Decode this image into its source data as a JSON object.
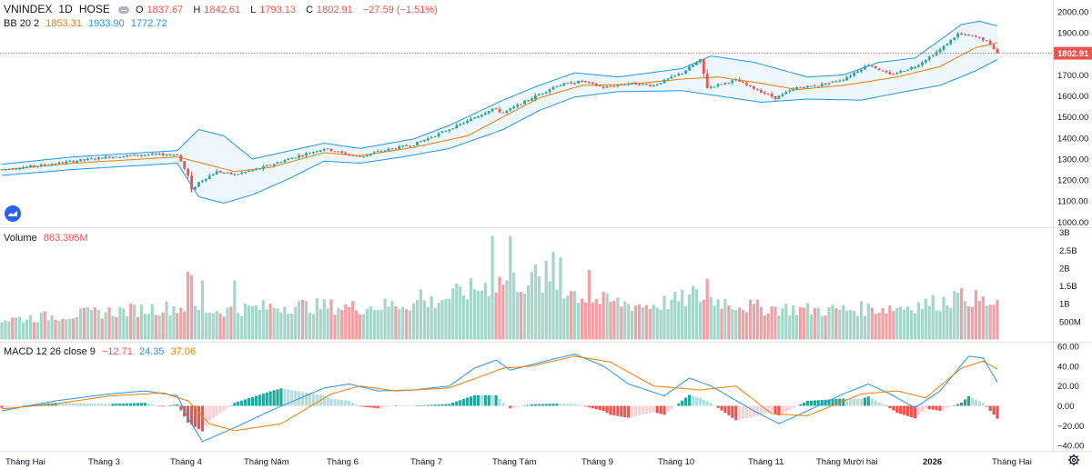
{
  "header": {
    "symbol": "VNINDEX",
    "interval": "1D",
    "exchange": "HOSE",
    "ohlc": {
      "open_label": "O",
      "open": "1837.67",
      "high_label": "H",
      "high": "1842.61",
      "low_label": "L",
      "low": "1793.13",
      "close_label": "C",
      "close": "1802.91",
      "change": "−27.59 (−1.51%)"
    }
  },
  "indicators": {
    "bb": {
      "label": "BB 20 2",
      "basis": "1853.31",
      "upper": "1933.90",
      "lower": "1772.72"
    },
    "volume": {
      "label": "Volume",
      "value": "863.395M"
    },
    "macd": {
      "label": "MACD 12 26 close 9",
      "hist": "−12.71",
      "macd": "24.35",
      "signal": "37.06"
    }
  },
  "colors": {
    "up": "#26a69a",
    "down": "#ef5350",
    "vol_up": "#a5d6c9",
    "vol_down": "#f1a0a6",
    "bb_band": "#2196f3",
    "bb_basis": "#f57c00",
    "macd_line": "#2196f3",
    "signal_line": "#f57c00",
    "last_price_bg": "#ef5350"
  },
  "last_price_tag": "1802.91",
  "chart_data": [
    {
      "type": "candlestick",
      "name": "price",
      "ylim": [
        1000,
        2000
      ],
      "yticks": [
        "2000.00",
        "1900.00",
        "1800.00",
        "1700.00",
        "1600.00",
        "1500.00",
        "1400.00",
        "1300.00",
        "1200.00",
        "1100.00",
        "1000.00"
      ],
      "anchors": [
        {
          "t": 0,
          "v": 1250
        },
        {
          "t": 10,
          "v": 1268
        },
        {
          "t": 20,
          "v": 1290
        },
        {
          "t": 30,
          "v": 1310
        },
        {
          "t": 40,
          "v": 1320
        },
        {
          "t": 49,
          "v": 1322
        },
        {
          "t": 52,
          "v": 1220
        },
        {
          "t": 53,
          "v": 1150
        },
        {
          "t": 55,
          "v": 1190
        },
        {
          "t": 60,
          "v": 1240
        },
        {
          "t": 65,
          "v": 1225
        },
        {
          "t": 72,
          "v": 1255
        },
        {
          "t": 80,
          "v": 1300
        },
        {
          "t": 90,
          "v": 1350
        },
        {
          "t": 97,
          "v": 1320
        },
        {
          "t": 100,
          "v": 1310
        },
        {
          "t": 105,
          "v": 1335
        },
        {
          "t": 115,
          "v": 1370
        },
        {
          "t": 122,
          "v": 1420
        },
        {
          "t": 130,
          "v": 1480
        },
        {
          "t": 137,
          "v": 1540
        },
        {
          "t": 140,
          "v": 1520
        },
        {
          "t": 148,
          "v": 1590
        },
        {
          "t": 155,
          "v": 1650
        },
        {
          "t": 162,
          "v": 1670
        },
        {
          "t": 168,
          "v": 1640
        },
        {
          "t": 175,
          "v": 1660
        },
        {
          "t": 182,
          "v": 1650
        },
        {
          "t": 190,
          "v": 1710
        },
        {
          "t": 195,
          "v": 1770
        },
        {
          "t": 197,
          "v": 1640
        },
        {
          "t": 205,
          "v": 1675
        },
        {
          "t": 212,
          "v": 1620
        },
        {
          "t": 216,
          "v": 1590
        },
        {
          "t": 222,
          "v": 1640
        },
        {
          "t": 228,
          "v": 1650
        },
        {
          "t": 235,
          "v": 1680
        },
        {
          "t": 242,
          "v": 1750
        },
        {
          "t": 248,
          "v": 1700
        },
        {
          "t": 255,
          "v": 1740
        },
        {
          "t": 262,
          "v": 1820
        },
        {
          "t": 267,
          "v": 1895
        },
        {
          "t": 272,
          "v": 1880
        },
        {
          "t": 275,
          "v": 1860
        },
        {
          "t": 277,
          "v": 1825
        },
        {
          "t": 278,
          "v": 1803
        }
      ],
      "bb_upper_anchors": [
        {
          "t": 0,
          "v": 1275
        },
        {
          "t": 20,
          "v": 1310
        },
        {
          "t": 49,
          "v": 1340
        },
        {
          "t": 55,
          "v": 1440
        },
        {
          "t": 62,
          "v": 1410
        },
        {
          "t": 70,
          "v": 1300
        },
        {
          "t": 90,
          "v": 1375
        },
        {
          "t": 100,
          "v": 1350
        },
        {
          "t": 115,
          "v": 1395
        },
        {
          "t": 125,
          "v": 1460
        },
        {
          "t": 140,
          "v": 1580
        },
        {
          "t": 150,
          "v": 1650
        },
        {
          "t": 160,
          "v": 1710
        },
        {
          "t": 172,
          "v": 1690
        },
        {
          "t": 190,
          "v": 1730
        },
        {
          "t": 198,
          "v": 1790
        },
        {
          "t": 210,
          "v": 1760
        },
        {
          "t": 225,
          "v": 1690
        },
        {
          "t": 235,
          "v": 1700
        },
        {
          "t": 245,
          "v": 1760
        },
        {
          "t": 255,
          "v": 1780
        },
        {
          "t": 268,
          "v": 1940
        },
        {
          "t": 273,
          "v": 1955
        },
        {
          "t": 278,
          "v": 1933
        }
      ],
      "bb_lower_anchors": [
        {
          "t": 0,
          "v": 1222
        },
        {
          "t": 20,
          "v": 1250
        },
        {
          "t": 49,
          "v": 1280
        },
        {
          "t": 55,
          "v": 1120
        },
        {
          "t": 62,
          "v": 1090
        },
        {
          "t": 70,
          "v": 1130
        },
        {
          "t": 80,
          "v": 1205
        },
        {
          "t": 90,
          "v": 1290
        },
        {
          "t": 100,
          "v": 1280
        },
        {
          "t": 112,
          "v": 1310
        },
        {
          "t": 125,
          "v": 1350
        },
        {
          "t": 140,
          "v": 1440
        },
        {
          "t": 150,
          "v": 1530
        },
        {
          "t": 160,
          "v": 1595
        },
        {
          "t": 172,
          "v": 1620
        },
        {
          "t": 190,
          "v": 1625
        },
        {
          "t": 200,
          "v": 1600
        },
        {
          "t": 212,
          "v": 1570
        },
        {
          "t": 225,
          "v": 1585
        },
        {
          "t": 240,
          "v": 1580
        },
        {
          "t": 252,
          "v": 1620
        },
        {
          "t": 262,
          "v": 1650
        },
        {
          "t": 272,
          "v": 1720
        },
        {
          "t": 278,
          "v": 1773
        }
      ],
      "bb_basis_anchors": [
        {
          "t": 0,
          "v": 1248
        },
        {
          "t": 20,
          "v": 1280
        },
        {
          "t": 49,
          "v": 1310
        },
        {
          "t": 56,
          "v": 1280
        },
        {
          "t": 65,
          "v": 1240
        },
        {
          "t": 75,
          "v": 1260
        },
        {
          "t": 90,
          "v": 1330
        },
        {
          "t": 100,
          "v": 1315
        },
        {
          "t": 115,
          "v": 1355
        },
        {
          "t": 130,
          "v": 1410
        },
        {
          "t": 140,
          "v": 1500
        },
        {
          "t": 150,
          "v": 1590
        },
        {
          "t": 162,
          "v": 1650
        },
        {
          "t": 175,
          "v": 1655
        },
        {
          "t": 190,
          "v": 1680
        },
        {
          "t": 200,
          "v": 1690
        },
        {
          "t": 212,
          "v": 1660
        },
        {
          "t": 222,
          "v": 1630
        },
        {
          "t": 235,
          "v": 1650
        },
        {
          "t": 250,
          "v": 1690
        },
        {
          "t": 262,
          "v": 1740
        },
        {
          "t": 272,
          "v": 1830
        },
        {
          "t": 278,
          "v": 1853
        }
      ]
    },
    {
      "type": "bar",
      "name": "volume",
      "ylim": [
        0,
        3000
      ],
      "yticks": [
        "3B",
        "2.5B",
        "2B",
        "1.5B",
        "1B",
        "500M"
      ],
      "baseline_anchors": [
        {
          "t": 0,
          "v": 550
        },
        {
          "t": 20,
          "v": 700
        },
        {
          "t": 40,
          "v": 850
        },
        {
          "t": 49,
          "v": 900
        },
        {
          "t": 60,
          "v": 800
        },
        {
          "t": 80,
          "v": 950
        },
        {
          "t": 100,
          "v": 900
        },
        {
          "t": 120,
          "v": 1050
        },
        {
          "t": 130,
          "v": 1350
        },
        {
          "t": 140,
          "v": 1650
        },
        {
          "t": 155,
          "v": 1500
        },
        {
          "t": 165,
          "v": 1100
        },
        {
          "t": 180,
          "v": 950
        },
        {
          "t": 195,
          "v": 1200
        },
        {
          "t": 210,
          "v": 900
        },
        {
          "t": 230,
          "v": 820
        },
        {
          "t": 250,
          "v": 900
        },
        {
          "t": 262,
          "v": 1050
        },
        {
          "t": 270,
          "v": 1200
        },
        {
          "t": 278,
          "v": 900
        }
      ],
      "spikes": [
        {
          "t": 52,
          "v": 1900
        },
        {
          "t": 53,
          "v": 1800
        },
        {
          "t": 56,
          "v": 1650
        },
        {
          "t": 65,
          "v": 1650
        },
        {
          "t": 117,
          "v": 1400
        },
        {
          "t": 137,
          "v": 2900
        },
        {
          "t": 142,
          "v": 2900
        },
        {
          "t": 149,
          "v": 2100
        },
        {
          "t": 152,
          "v": 2200
        },
        {
          "t": 154,
          "v": 2450
        },
        {
          "t": 156,
          "v": 2300
        },
        {
          "t": 164,
          "v": 1950
        },
        {
          "t": 193,
          "v": 1500
        },
        {
          "t": 197,
          "v": 1700
        },
        {
          "t": 266,
          "v": 1350
        }
      ]
    },
    {
      "type": "line",
      "name": "macd",
      "ylim": [
        -40,
        60
      ],
      "yticks": [
        "60.00",
        "40.00",
        "20.00",
        "0.00",
        "−20.00",
        "−40.00"
      ],
      "macd_anchors": [
        {
          "t": 0,
          "v": -5
        },
        {
          "t": 15,
          "v": 5
        },
        {
          "t": 30,
          "v": 12
        },
        {
          "t": 40,
          "v": 15
        },
        {
          "t": 49,
          "v": 10
        },
        {
          "t": 52,
          "v": -12
        },
        {
          "t": 56,
          "v": -36
        },
        {
          "t": 65,
          "v": -22
        },
        {
          "t": 75,
          "v": -5
        },
        {
          "t": 90,
          "v": 18
        },
        {
          "t": 97,
          "v": 22
        },
        {
          "t": 105,
          "v": 15
        },
        {
          "t": 115,
          "v": 16
        },
        {
          "t": 125,
          "v": 20
        },
        {
          "t": 132,
          "v": 38
        },
        {
          "t": 138,
          "v": 46
        },
        {
          "t": 142,
          "v": 36
        },
        {
          "t": 155,
          "v": 48
        },
        {
          "t": 160,
          "v": 52
        },
        {
          "t": 168,
          "v": 40
        },
        {
          "t": 175,
          "v": 22
        },
        {
          "t": 185,
          "v": 10
        },
        {
          "t": 192,
          "v": 28
        },
        {
          "t": 198,
          "v": 20
        },
        {
          "t": 210,
          "v": -5
        },
        {
          "t": 217,
          "v": -18
        },
        {
          "t": 225,
          "v": -5
        },
        {
          "t": 235,
          "v": 12
        },
        {
          "t": 242,
          "v": 22
        },
        {
          "t": 248,
          "v": 12
        },
        {
          "t": 255,
          "v": -2
        },
        {
          "t": 262,
          "v": 15
        },
        {
          "t": 270,
          "v": 50
        },
        {
          "t": 274,
          "v": 48
        },
        {
          "t": 278,
          "v": 24
        }
      ],
      "signal_anchors": [
        {
          "t": 0,
          "v": -3
        },
        {
          "t": 15,
          "v": 2
        },
        {
          "t": 30,
          "v": 10
        },
        {
          "t": 45,
          "v": 13
        },
        {
          "t": 52,
          "v": 5
        },
        {
          "t": 58,
          "v": -18
        },
        {
          "t": 65,
          "v": -25
        },
        {
          "t": 78,
          "v": -18
        },
        {
          "t": 92,
          "v": 12
        },
        {
          "t": 100,
          "v": 20
        },
        {
          "t": 110,
          "v": 15
        },
        {
          "t": 125,
          "v": 18
        },
        {
          "t": 140,
          "v": 38
        },
        {
          "t": 148,
          "v": 40
        },
        {
          "t": 160,
          "v": 50
        },
        {
          "t": 170,
          "v": 44
        },
        {
          "t": 182,
          "v": 20
        },
        {
          "t": 195,
          "v": 16
        },
        {
          "t": 205,
          "v": 20
        },
        {
          "t": 215,
          "v": -8
        },
        {
          "t": 225,
          "v": -10
        },
        {
          "t": 240,
          "v": 12
        },
        {
          "t": 250,
          "v": 15
        },
        {
          "t": 258,
          "v": 8
        },
        {
          "t": 268,
          "v": 38
        },
        {
          "t": 274,
          "v": 45
        },
        {
          "t": 278,
          "v": 37
        }
      ]
    }
  ],
  "x_axis": {
    "labels": [
      "Tháng Hai",
      "Tháng 3",
      "Tháng 4",
      "Tháng Năm",
      "Tháng 6",
      "Tháng 7",
      "Tháng Tám",
      "Tháng 9",
      "Tháng 10",
      "Tháng 11",
      "Tháng Mười hai",
      "2026",
      "Tháng Hai"
    ]
  }
}
